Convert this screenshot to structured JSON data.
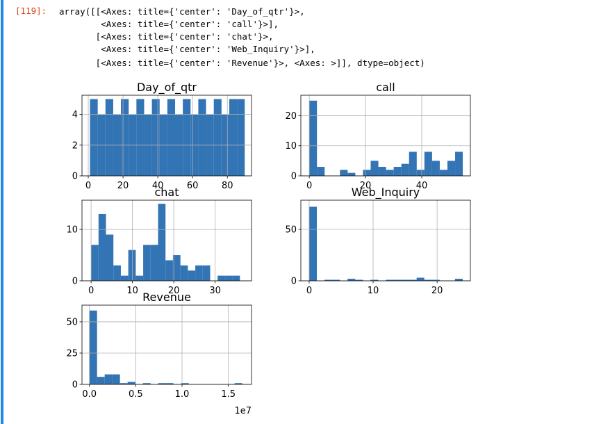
{
  "prompt": "[119]:",
  "output": [
    "array([[<Axes: title={'center': 'Day_of_qtr'}>,",
    "        <Axes: title={'center': 'call'}>],",
    "       [<Axes: title={'center': 'chat'}>,",
    "        <Axes: title={'center': 'Web_Inquiry'}>],",
    "       [<Axes: title={'center': 'Revenue'}>, <Axes: >]], dtype=object)"
  ],
  "chart_data": [
    {
      "type": "histogram",
      "title": "Day_of_qtr",
      "color": "#3274b4",
      "grid": true,
      "bins": [
        1,
        5.45,
        9.9,
        14.35,
        18.8,
        23.25,
        27.7,
        32.15,
        36.6,
        41.05,
        45.5,
        49.95,
        54.4,
        58.85,
        63.3,
        67.75,
        72.2,
        76.65,
        81.1,
        85.55,
        90
      ],
      "counts": [
        5,
        4,
        5,
        4,
        5,
        4,
        5,
        4,
        5,
        4,
        5,
        4,
        5,
        4,
        5,
        4,
        5,
        4,
        5,
        5
      ],
      "xlim": [
        -3.6,
        93.9
      ],
      "ylim": [
        0,
        5.25
      ],
      "xticks": [
        0,
        20,
        40,
        60,
        80
      ],
      "yticks": [
        0,
        2,
        4
      ]
    },
    {
      "type": "histogram",
      "title": "call",
      "color": "#3274b4",
      "grid": true,
      "bins": [
        0,
        2.73,
        5.46,
        8.19,
        10.92,
        13.65,
        16.38,
        19.11,
        21.84,
        24.57,
        27.3,
        30.03,
        32.76,
        35.49,
        38.22,
        40.95,
        43.68,
        46.41,
        49.14,
        51.87,
        54.6
      ],
      "counts": [
        25,
        3,
        0,
        0,
        2,
        1,
        0,
        2,
        5,
        3,
        2,
        3,
        4,
        8,
        2,
        8,
        5,
        2,
        5,
        8
      ],
      "xlim": [
        -3,
        57.3
      ],
      "ylim": [
        0,
        26.8
      ],
      "xticks": [
        0,
        20,
        40
      ],
      "yticks": [
        0,
        10,
        20
      ]
    },
    {
      "type": "histogram",
      "title": "chat",
      "color": "#3274b4",
      "grid": true,
      "bins": [
        0,
        1.8,
        3.6,
        5.4,
        7.2,
        9,
        10.8,
        12.6,
        14.4,
        16.2,
        18,
        19.8,
        21.6,
        23.4,
        25.2,
        27,
        28.8,
        30.6,
        32.4,
        34.2,
        36
      ],
      "counts": [
        7,
        13,
        9,
        3,
        1,
        6,
        1,
        7,
        7,
        15,
        4,
        5,
        3,
        2,
        3,
        3,
        0,
        1,
        1,
        1
      ],
      "xlim": [
        -2.2,
        38.8
      ],
      "ylim": [
        0,
        15.7
      ],
      "xticks": [
        0,
        10,
        20,
        30
      ],
      "yticks": [
        0,
        10
      ]
    },
    {
      "type": "histogram",
      "title": "Web_Inquiry",
      "color": "#3274b4",
      "grid": true,
      "bins": [
        0,
        1.2,
        2.4,
        3.6,
        4.8,
        6,
        7.2,
        8.4,
        9.6,
        10.8,
        12,
        13.2,
        14.4,
        15.6,
        16.8,
        18,
        19.2,
        20.4,
        21.6,
        22.8,
        24
      ],
      "counts": [
        72,
        0,
        1,
        1,
        0,
        2,
        1,
        0,
        1,
        0,
        1,
        1,
        1,
        1,
        3,
        1,
        1,
        0,
        0,
        2
      ],
      "xlim": [
        -1.3,
        25.2
      ],
      "ylim": [
        0,
        78.4
      ],
      "xticks": [
        0,
        10,
        20
      ],
      "yticks": [
        0,
        50
      ]
    },
    {
      "type": "histogram",
      "title": "Revenue",
      "color": "#3274b4",
      "grid": true,
      "x_offset_label": "1e7",
      "bins": [
        0,
        0.0825,
        0.165,
        0.2475,
        0.33,
        0.4125,
        0.495,
        0.5775,
        0.66,
        0.7425,
        0.825,
        0.9075,
        0.99,
        1.0725,
        1.155,
        1.2375,
        1.32,
        1.4025,
        1.485,
        1.5675,
        1.65
      ],
      "counts": [
        59,
        6,
        8,
        8,
        1,
        2,
        0,
        1,
        0,
        1,
        1,
        0,
        1,
        0,
        0,
        0,
        0,
        0,
        0,
        1
      ],
      "xlim": [
        -0.08,
        1.75
      ],
      "ylim": [
        0,
        63.3
      ],
      "xticks": [
        {
          "value": 0,
          "label": "0.0"
        },
        {
          "value": 0.5,
          "label": "0.5"
        },
        {
          "value": 1,
          "label": "1.0"
        },
        {
          "value": 1.5,
          "label": "1.5"
        }
      ],
      "yticks": [
        0,
        25,
        50
      ]
    }
  ]
}
